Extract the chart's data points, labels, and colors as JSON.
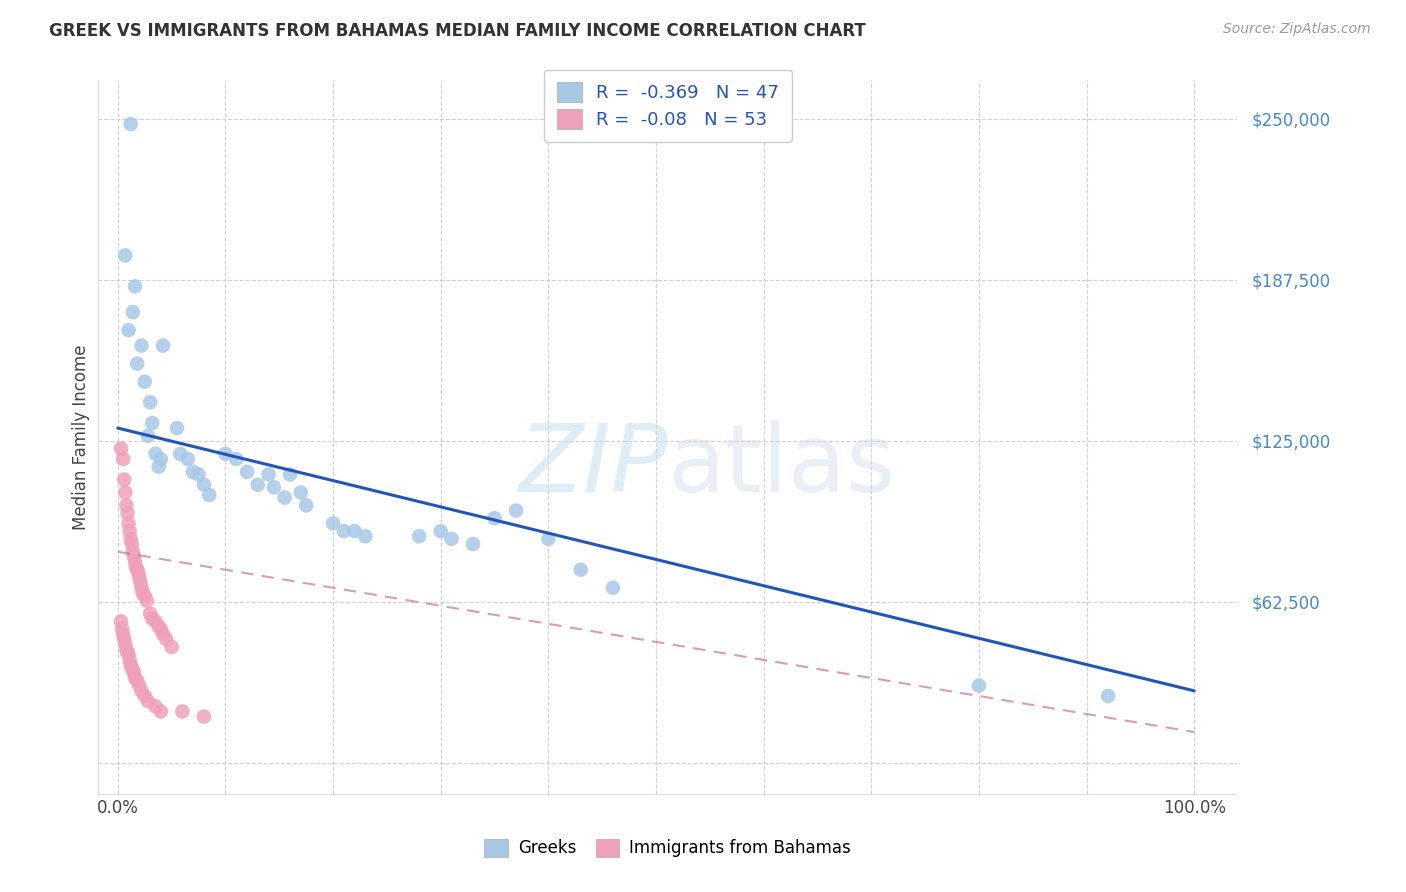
{
  "title": "GREEK VS IMMIGRANTS FROM BAHAMAS MEDIAN FAMILY INCOME CORRELATION CHART",
  "source": "Source: ZipAtlas.com",
  "ylabel": "Median Family Income",
  "yticks": [
    0,
    62500,
    125000,
    187500,
    250000
  ],
  "ytick_labels": [
    "",
    "$62,500",
    "$125,000",
    "$187,500",
    "$250,000"
  ],
  "ymax": 265000,
  "ymin": -12000,
  "xmin": -0.018,
  "xmax": 1.04,
  "greek_R": -0.369,
  "greek_N": 47,
  "bahamas_R": -0.08,
  "bahamas_N": 53,
  "greek_color": "#a8c8e8",
  "greek_line_color": "#2255bb",
  "bahamas_color": "#f0a0b8",
  "bahamas_line_color": "#cc6688",
  "watermark": "ZIPatlas",
  "background_color": "#ffffff",
  "legend_text_color": "#2255bb",
  "title_color": "#333333",
  "source_color": "#999999",
  "ytick_color": "#4488cc",
  "greek_x": [
    0.012,
    0.007,
    0.016,
    0.014,
    0.01,
    0.022,
    0.018,
    0.025,
    0.03,
    0.032,
    0.028,
    0.035,
    0.04,
    0.038,
    0.042,
    0.055,
    0.058,
    0.065,
    0.07,
    0.075,
    0.08,
    0.085,
    0.1,
    0.11,
    0.12,
    0.13,
    0.14,
    0.145,
    0.155,
    0.16,
    0.17,
    0.175,
    0.2,
    0.21,
    0.22,
    0.23,
    0.28,
    0.3,
    0.31,
    0.33,
    0.35,
    0.37,
    0.4,
    0.43,
    0.46,
    0.8,
    0.92
  ],
  "greek_y": [
    248000,
    197000,
    185000,
    175000,
    168000,
    162000,
    155000,
    148000,
    140000,
    132000,
    127000,
    120000,
    118000,
    115000,
    162000,
    130000,
    120000,
    118000,
    113000,
    112000,
    108000,
    104000,
    120000,
    118000,
    113000,
    108000,
    112000,
    107000,
    103000,
    112000,
    105000,
    100000,
    93000,
    90000,
    90000,
    88000,
    88000,
    90000,
    87000,
    85000,
    95000,
    98000,
    87000,
    75000,
    68000,
    30000,
    26000
  ],
  "bahamas_x": [
    0.003,
    0.005,
    0.006,
    0.007,
    0.008,
    0.009,
    0.01,
    0.011,
    0.012,
    0.013,
    0.014,
    0.015,
    0.016,
    0.017,
    0.018,
    0.019,
    0.02,
    0.021,
    0.022,
    0.023,
    0.025,
    0.027,
    0.03,
    0.032,
    0.035,
    0.038,
    0.04,
    0.042,
    0.045,
    0.05,
    0.003,
    0.004,
    0.005,
    0.006,
    0.007,
    0.008,
    0.009,
    0.01,
    0.011,
    0.012,
    0.013,
    0.014,
    0.015,
    0.016,
    0.018,
    0.02,
    0.022,
    0.025,
    0.028,
    0.035,
    0.04,
    0.06,
    0.08
  ],
  "bahamas_y": [
    122000,
    118000,
    110000,
    105000,
    100000,
    97000,
    93000,
    90000,
    87000,
    85000,
    82000,
    80000,
    78000,
    76000,
    75000,
    74000,
    72000,
    70000,
    68000,
    66000,
    65000,
    63000,
    58000,
    56000,
    55000,
    53000,
    52000,
    50000,
    48000,
    45000,
    55000,
    52000,
    50000,
    48000,
    46000,
    44000,
    43000,
    42000,
    40000,
    38000,
    37000,
    36000,
    35000,
    33000,
    32000,
    30000,
    28000,
    26000,
    24000,
    22000,
    20000,
    20000,
    18000
  ],
  "greek_trend": [
    0.0,
    1.0,
    130000,
    28000
  ],
  "bahamas_trend": [
    0.0,
    1.0,
    82000,
    12000
  ],
  "xtick_positions": [
    0.0,
    0.1,
    0.2,
    0.3,
    0.4,
    0.5,
    0.6,
    0.7,
    0.8,
    0.9,
    1.0
  ],
  "xtick_labels": [
    "0.0%",
    "",
    "",
    "",
    "",
    "",
    "",
    "",
    "",
    "",
    "100.0%"
  ]
}
